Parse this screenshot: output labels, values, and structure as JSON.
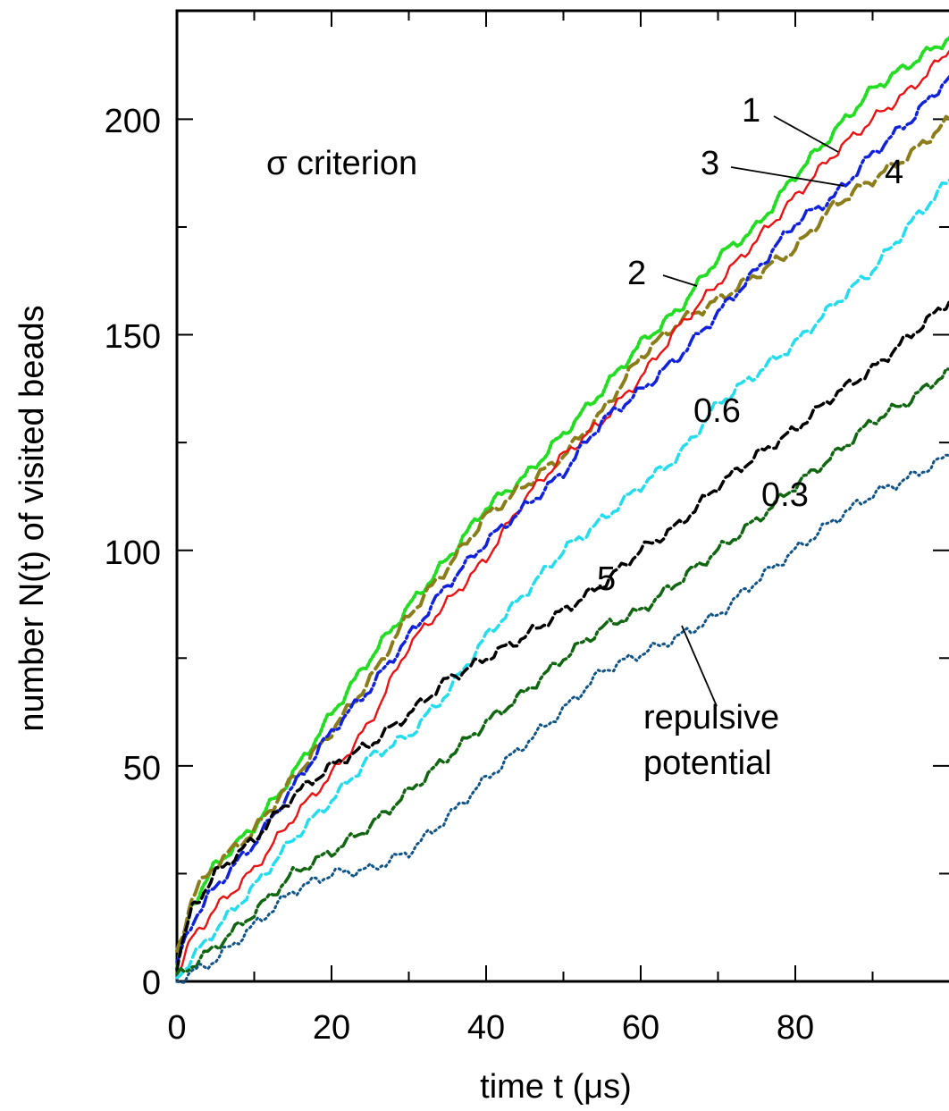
{
  "chart_data": {
    "type": "line",
    "xlabel": "time t  (μs)",
    "ylabel": "number N(t) of visited beads",
    "xlim": [
      0,
      100
    ],
    "ylim": [
      0,
      225
    ],
    "x_ticks": [
      0,
      20,
      40,
      60,
      80
    ],
    "x_tick_labels": [
      "0",
      "20",
      "40",
      "60",
      "80"
    ],
    "y_ticks": [
      0,
      50,
      100,
      150,
      200
    ],
    "y_tick_labels": [
      "0",
      "50",
      "100",
      "150",
      "200"
    ],
    "grid": false,
    "legend": "none (curves labeled inline)",
    "annotations": {
      "criterion": "σ criterion",
      "repulsive_line1": "repulsive",
      "repulsive_line2": "potential"
    },
    "series": [
      {
        "name": "2",
        "color": "#22dd22",
        "dash": "dotted-thick",
        "x": [
          0,
          2,
          5,
          10,
          15,
          20,
          25,
          30,
          35,
          40,
          45,
          50,
          55,
          60,
          65,
          70,
          75,
          80,
          85,
          90,
          95,
          100
        ],
        "y": [
          3,
          18,
          27,
          36,
          48,
          62,
          75,
          87,
          98,
          110,
          117,
          127,
          137,
          148,
          156,
          168,
          175,
          187,
          197,
          207,
          213,
          219
        ]
      },
      {
        "name": "4",
        "color": "#8b7d1a",
        "dash": "long-dash",
        "x": [
          0,
          2,
          5,
          10,
          15,
          20,
          25,
          30,
          35,
          40,
          45,
          50,
          55,
          60,
          65,
          70,
          75,
          80,
          85,
          90,
          95,
          100
        ],
        "y": [
          6,
          20,
          27,
          35,
          47,
          58,
          70,
          85,
          96,
          108,
          115,
          122,
          132,
          145,
          153,
          158,
          164,
          170,
          180,
          186,
          192,
          200
        ]
      },
      {
        "name": "1",
        "color": "#ee1111",
        "dash": "solid",
        "x": [
          0,
          2,
          5,
          10,
          15,
          20,
          25,
          30,
          35,
          40,
          45,
          50,
          55,
          60,
          65,
          70,
          75,
          80,
          85,
          90,
          95,
          100
        ],
        "y": [
          2,
          10,
          17,
          26,
          38,
          48,
          60,
          78,
          88,
          98,
          112,
          122,
          130,
          140,
          152,
          162,
          172,
          182,
          192,
          200,
          207,
          216
        ]
      },
      {
        "name": "3",
        "color": "#1122dd",
        "dash": "dash-dot",
        "x": [
          0,
          2,
          5,
          10,
          15,
          20,
          25,
          30,
          35,
          40,
          45,
          50,
          55,
          60,
          65,
          70,
          75,
          80,
          85,
          90,
          95,
          100
        ],
        "y": [
          4,
          14,
          22,
          32,
          45,
          58,
          68,
          80,
          92,
          102,
          110,
          118,
          130,
          137,
          145,
          155,
          165,
          176,
          182,
          192,
          200,
          210
        ]
      },
      {
        "name": "0.6",
        "color": "#22ddee",
        "dash": "dashed",
        "x": [
          0,
          5,
          10,
          15,
          20,
          25,
          30,
          35,
          40,
          45,
          50,
          55,
          60,
          65,
          70,
          75,
          80,
          85,
          90,
          95,
          100
        ],
        "y": [
          1,
          12,
          22,
          33,
          42,
          52,
          57,
          67,
          80,
          90,
          100,
          107,
          115,
          122,
          134,
          141,
          148,
          157,
          165,
          176,
          186
        ]
      },
      {
        "name": "5",
        "color": "#000000",
        "dash": "dashed",
        "x": [
          0,
          2,
          5,
          10,
          15,
          20,
          25,
          30,
          35,
          40,
          45,
          50,
          55,
          60,
          65,
          70,
          75,
          80,
          85,
          90,
          95,
          100
        ],
        "y": [
          4,
          17,
          25,
          33,
          43,
          50,
          55,
          62,
          70,
          75,
          80,
          86,
          92,
          100,
          106,
          115,
          122,
          128,
          136,
          142,
          150,
          158
        ]
      },
      {
        "name": "0.3",
        "color": "#116611",
        "dash": "dash-dot",
        "x": [
          0,
          5,
          10,
          15,
          20,
          25,
          30,
          35,
          40,
          45,
          50,
          55,
          60,
          65,
          70,
          75,
          80,
          85,
          90,
          95,
          100
        ],
        "y": [
          1,
          8,
          16,
          25,
          30,
          36,
          44,
          52,
          60,
          67,
          75,
          82,
          86,
          93,
          100,
          107,
          115,
          122,
          130,
          135,
          142
        ]
      },
      {
        "name": "repulsive potential",
        "color": "#115588",
        "dash": "dotted",
        "x": [
          0,
          5,
          10,
          15,
          20,
          25,
          30,
          35,
          40,
          45,
          50,
          55,
          60,
          65,
          70,
          75,
          80,
          85,
          90,
          95,
          100
        ],
        "y": [
          0,
          5,
          13,
          21,
          25,
          26,
          30,
          38,
          47,
          55,
          63,
          72,
          76,
          80,
          85,
          93,
          100,
          107,
          113,
          117,
          122
        ]
      }
    ],
    "curve_labels": [
      "2",
      "1",
      "3",
      "4",
      "0.6",
      "5",
      "0.3"
    ]
  }
}
